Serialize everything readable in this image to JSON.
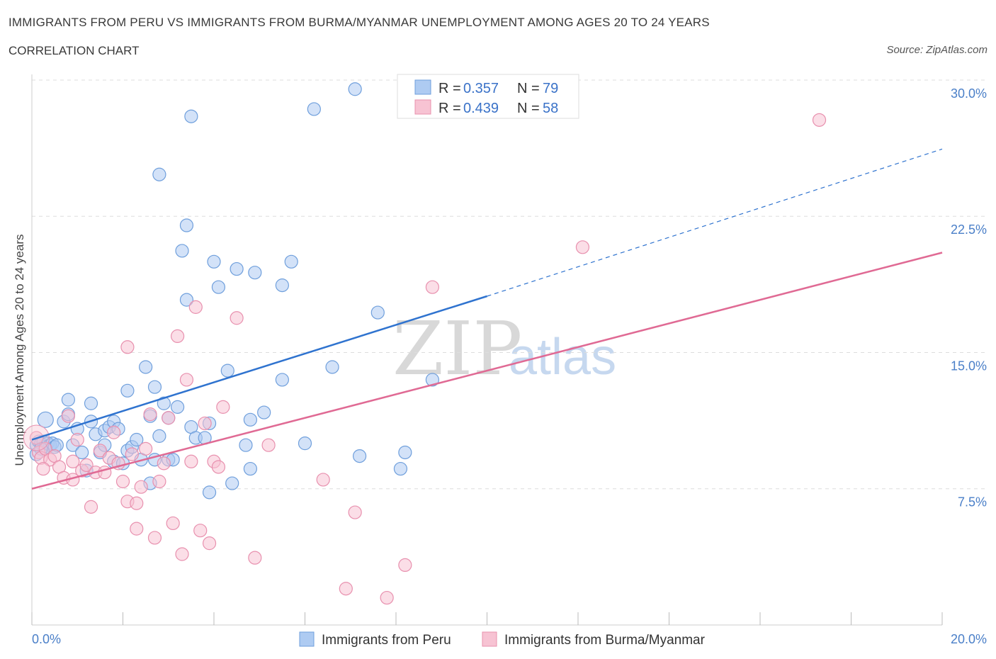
{
  "title": "IMMIGRANTS FROM PERU VS IMMIGRANTS FROM BURMA/MYANMAR UNEMPLOYMENT AMONG AGES 20 TO 24 YEARS",
  "subtitle": "CORRELATION CHART",
  "source": "Source: ZipAtlas.com",
  "watermark": {
    "zip": "ZIP",
    "atlas": "atlas"
  },
  "colors": {
    "peru_fill": "#aecbf2",
    "peru_stroke": "#6f9fdc",
    "peru_line": "#2f73cf",
    "burma_fill": "#f7c3d3",
    "burma_stroke": "#e890ae",
    "burma_line": "#e06a94",
    "axis_text": "#4a7fc8",
    "grid": "#dddddd"
  },
  "legend": {
    "peru": {
      "r_label": "R =",
      "r_value": "0.357",
      "n_label": "N =",
      "n_value": "79"
    },
    "burma": {
      "r_label": "R =",
      "r_value": "0.439",
      "n_label": "N =",
      "n_value": "58"
    }
  },
  "chart_data": {
    "type": "scatter",
    "title": "IMMIGRANTS FROM PERU VS IMMIGRANTS FROM BURMA/MYANMAR UNEMPLOYMENT AMONG AGES 20 TO 24 YEARS",
    "xlabel": "",
    "ylabel": "Unemployment Among Ages 20 to 24 years",
    "xlim": [
      0,
      20
    ],
    "ylim": [
      0,
      30.7
    ],
    "x_tick_labels": [
      "0.0%",
      "20.0%"
    ],
    "y_ticks": [
      7.5,
      15.0,
      22.5,
      30.0
    ],
    "y_tick_labels": [
      "7.5%",
      "15.0%",
      "22.5%",
      "30.0%"
    ],
    "grid": true,
    "legend_position": "top-center",
    "series": [
      {
        "name": "Immigrants from Peru",
        "r": 0.357,
        "n": 79,
        "trend": {
          "x0": 0,
          "y0": 10.2,
          "x1": 10,
          "y1": 18.1,
          "dashed_to_x": 20,
          "dashed_to_y": 26.2
        },
        "points": [
          [
            0.1,
            9.9
          ],
          [
            0.15,
            10.1
          ],
          [
            0.2,
            10.0
          ],
          [
            0.25,
            10.1
          ],
          [
            0.3,
            9.8
          ],
          [
            0.35,
            10.0
          ],
          [
            0.4,
            9.9
          ],
          [
            0.45,
            10.0
          ],
          [
            0.5,
            9.8
          ],
          [
            0.55,
            9.9
          ],
          [
            0.3,
            11.3
          ],
          [
            0.7,
            11.2
          ],
          [
            0.8,
            11.6
          ],
          [
            0.8,
            12.4
          ],
          [
            0.9,
            9.9
          ],
          [
            1.0,
            10.8
          ],
          [
            1.1,
            9.5
          ],
          [
            1.2,
            8.5
          ],
          [
            1.3,
            11.2
          ],
          [
            1.3,
            12.2
          ],
          [
            1.4,
            10.5
          ],
          [
            1.5,
            9.5
          ],
          [
            1.6,
            9.9
          ],
          [
            1.6,
            10.7
          ],
          [
            1.7,
            10.9
          ],
          [
            1.8,
            9.0
          ],
          [
            1.8,
            11.2
          ],
          [
            1.9,
            10.8
          ],
          [
            2.0,
            8.9
          ],
          [
            2.1,
            9.6
          ],
          [
            2.1,
            12.9
          ],
          [
            2.2,
            9.8
          ],
          [
            2.3,
            10.2
          ],
          [
            2.4,
            9.1
          ],
          [
            2.5,
            14.2
          ],
          [
            2.6,
            11.5
          ],
          [
            2.6,
            7.8
          ],
          [
            2.7,
            13.1
          ],
          [
            2.7,
            9.1
          ],
          [
            2.8,
            10.4
          ],
          [
            2.8,
            24.8
          ],
          [
            2.9,
            12.2
          ],
          [
            3.0,
            11.4
          ],
          [
            3.0,
            9.1
          ],
          [
            3.1,
            9.1
          ],
          [
            3.2,
            12.0
          ],
          [
            3.3,
            20.6
          ],
          [
            3.4,
            22.0
          ],
          [
            3.4,
            17.9
          ],
          [
            3.5,
            10.9
          ],
          [
            3.5,
            28.0
          ],
          [
            3.6,
            10.3
          ],
          [
            3.8,
            10.3
          ],
          [
            3.9,
            11.1
          ],
          [
            3.9,
            7.3
          ],
          [
            4.0,
            20.0
          ],
          [
            4.1,
            18.6
          ],
          [
            4.3,
            14.0
          ],
          [
            4.4,
            7.8
          ],
          [
            4.5,
            19.6
          ],
          [
            4.7,
            9.9
          ],
          [
            4.8,
            11.3
          ],
          [
            4.8,
            8.6
          ],
          [
            4.9,
            19.4
          ],
          [
            5.1,
            11.7
          ],
          [
            5.5,
            13.5
          ],
          [
            5.5,
            18.7
          ],
          [
            5.7,
            20.0
          ],
          [
            6.0,
            10.0
          ],
          [
            6.2,
            28.4
          ],
          [
            6.6,
            14.2
          ],
          [
            7.1,
            29.5
          ],
          [
            7.2,
            9.3
          ],
          [
            7.6,
            17.2
          ],
          [
            8.1,
            8.6
          ],
          [
            8.2,
            9.5
          ],
          [
            8.8,
            13.5
          ],
          [
            0.1,
            9.4
          ],
          [
            0.2,
            9.7
          ]
        ]
      },
      {
        "name": "Immigrants from Burma/Myanmar",
        "r": 0.439,
        "n": 58,
        "trend": {
          "x0": 0,
          "y0": 7.5,
          "x1": 20,
          "y1": 20.5
        },
        "points": [
          [
            0.1,
            10.3
          ],
          [
            0.15,
            9.5
          ],
          [
            0.2,
            9.2
          ],
          [
            0.3,
            9.7
          ],
          [
            0.4,
            9.1
          ],
          [
            0.5,
            9.3
          ],
          [
            0.6,
            8.7
          ],
          [
            0.7,
            8.1
          ],
          [
            0.8,
            11.5
          ],
          [
            0.9,
            9.0
          ],
          [
            0.9,
            8.0
          ],
          [
            1.0,
            10.2
          ],
          [
            1.1,
            8.5
          ],
          [
            1.2,
            8.8
          ],
          [
            1.3,
            6.5
          ],
          [
            1.4,
            8.4
          ],
          [
            1.5,
            9.6
          ],
          [
            1.6,
            8.4
          ],
          [
            1.7,
            9.2
          ],
          [
            1.8,
            10.6
          ],
          [
            1.9,
            8.9
          ],
          [
            2.0,
            7.9
          ],
          [
            2.1,
            6.8
          ],
          [
            2.1,
            15.3
          ],
          [
            2.2,
            9.4
          ],
          [
            2.3,
            6.7
          ],
          [
            2.3,
            5.3
          ],
          [
            2.4,
            7.6
          ],
          [
            2.5,
            9.7
          ],
          [
            2.6,
            11.6
          ],
          [
            2.7,
            4.8
          ],
          [
            2.8,
            7.9
          ],
          [
            2.9,
            8.9
          ],
          [
            3.0,
            11.4
          ],
          [
            3.1,
            5.6
          ],
          [
            3.2,
            15.9
          ],
          [
            3.3,
            3.9
          ],
          [
            3.4,
            13.5
          ],
          [
            3.5,
            9.0
          ],
          [
            3.6,
            17.5
          ],
          [
            3.7,
            5.2
          ],
          [
            3.8,
            11.1
          ],
          [
            3.9,
            4.5
          ],
          [
            4.0,
            9.0
          ],
          [
            4.1,
            8.7
          ],
          [
            4.2,
            12.0
          ],
          [
            4.5,
            16.9
          ],
          [
            4.9,
            3.7
          ],
          [
            5.2,
            9.9
          ],
          [
            6.4,
            8.0
          ],
          [
            6.9,
            2.0
          ],
          [
            7.1,
            6.2
          ],
          [
            7.8,
            1.5
          ],
          [
            8.2,
            3.3
          ],
          [
            8.8,
            18.6
          ],
          [
            12.1,
            20.8
          ],
          [
            17.3,
            27.8
          ],
          [
            0.25,
            8.6
          ]
        ]
      }
    ]
  },
  "bottom_legend": {
    "peru": "Immigrants from Peru",
    "burma": "Immigrants from Burma/Myanmar"
  }
}
